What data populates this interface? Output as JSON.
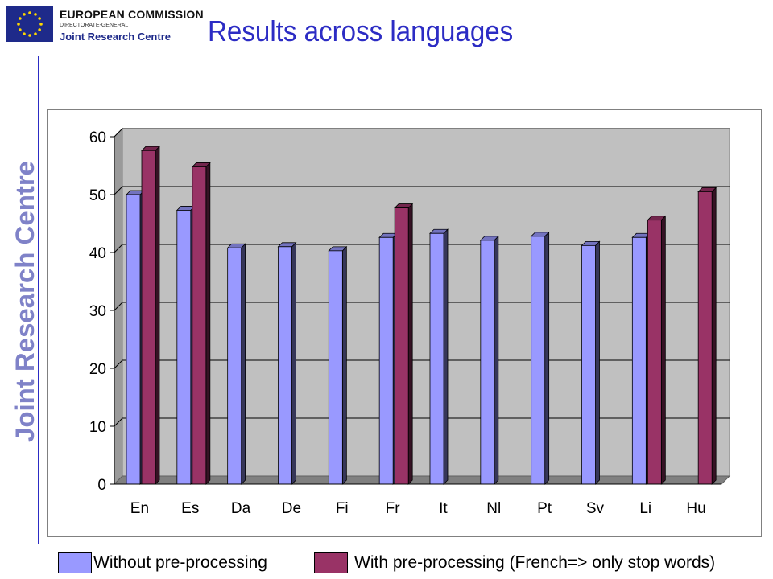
{
  "header": {
    "org_line1": "EUROPEAN COMMISSION",
    "org_line2": "DIRECTORATE-GENERAL",
    "org_line3": "Joint Research Centre",
    "title": "Results across languages",
    "side_label": "Joint Research Centre"
  },
  "colors": {
    "series1": "#9999ff",
    "series2": "#993366",
    "title": "#2c2cc4",
    "plot_bg": "#c0c0c0",
    "flag_bg": "#1e2a8a",
    "flag_stars": "#ffd700"
  },
  "chart_data": {
    "type": "bar",
    "title": "",
    "xlabel": "",
    "ylabel": "",
    "ylim": [
      0,
      60
    ],
    "yticks": [
      0,
      10,
      20,
      30,
      40,
      50,
      60
    ],
    "grid": true,
    "categories": [
      "En",
      "Es",
      "Da",
      "De",
      "Fi",
      "Fr",
      "It",
      "Nl",
      "Pt",
      "Sv",
      "Li",
      "Hu"
    ],
    "series": [
      {
        "name": "Without pre-processing",
        "values": [
          50,
          47.3,
          40.8,
          41,
          40.3,
          42.6,
          43.3,
          42.1,
          42.8,
          41.2,
          42.6,
          null
        ]
      },
      {
        "name": "With pre-processing (French=> only stop words)",
        "values": [
          57.6,
          54.8,
          null,
          null,
          null,
          47.7,
          null,
          null,
          null,
          null,
          45.6,
          50.5
        ]
      }
    ],
    "legend_position": "bottom"
  }
}
